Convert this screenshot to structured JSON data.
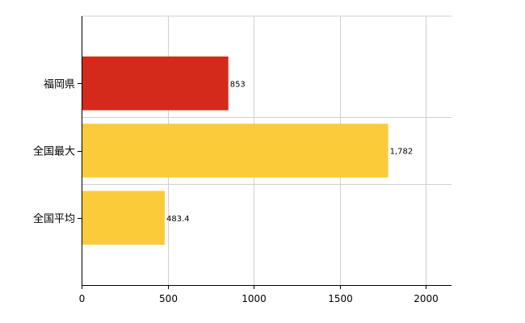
{
  "chart_data": {
    "type": "bar",
    "orientation": "horizontal",
    "categories": [
      "福岡県",
      "全国最大",
      "全国平均"
    ],
    "values": [
      853,
      1782,
      483.4
    ],
    "value_labels": [
      "853",
      "1,782",
      "483.4"
    ],
    "colors": [
      "#d42a1b",
      "#fccb3a",
      "#fccb3a"
    ],
    "xlim": [
      0,
      2150
    ],
    "xticks": [
      0,
      500,
      1000,
      1500,
      2000
    ],
    "grid": true,
    "title": "",
    "xlabel": "",
    "ylabel": ""
  }
}
